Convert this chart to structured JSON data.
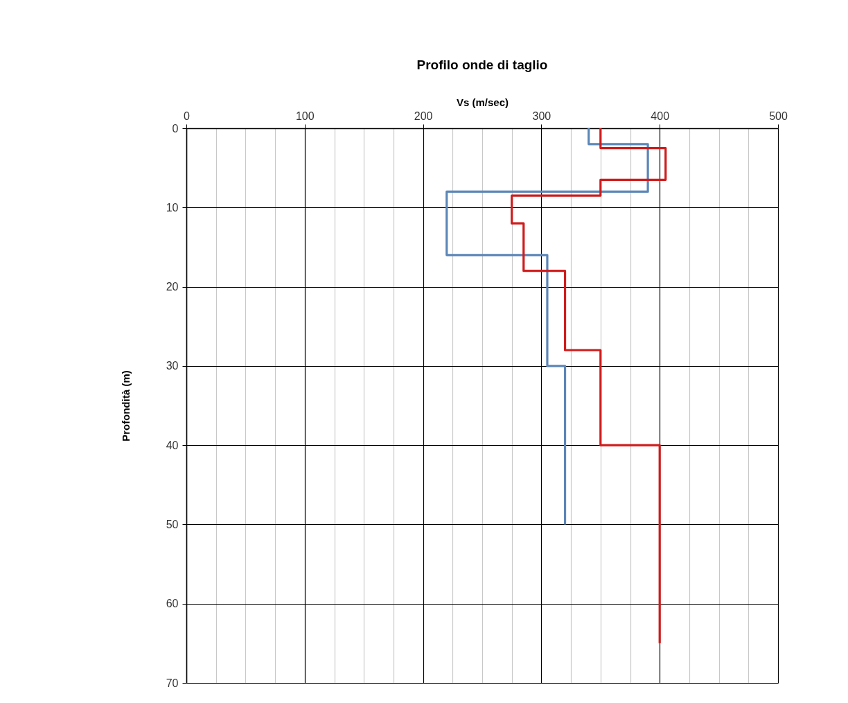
{
  "chart_data": {
    "type": "line",
    "title": "Profilo onde di taglio",
    "xlabel": "Vs (m/sec)",
    "ylabel": "Profondità (m)",
    "xlim": [
      0,
      500
    ],
    "xticks": [
      0,
      {
        "value": 25,
        "label": null
      },
      {
        "value": 50,
        "label": null
      },
      {
        "value": 75,
        "label": null
      },
      100,
      {
        "value": 125,
        "label": null
      },
      {
        "value": 150,
        "label": null
      },
      {
        "value": 175,
        "label": null
      },
      200,
      {
        "value": 225,
        "label": null
      },
      {
        "value": 250,
        "label": null
      },
      {
        "value": 275,
        "label": null
      },
      300,
      {
        "value": 325,
        "label": null
      },
      {
        "value": 350,
        "label": null
      },
      {
        "value": 375,
        "label": null
      },
      400,
      {
        "value": 425,
        "label": null
      },
      {
        "value": 450,
        "label": null
      },
      {
        "value": 475,
        "label": null
      },
      500
    ],
    "ylim": [
      70,
      0
    ],
    "yticks": [
      0,
      10,
      20,
      30,
      40,
      50,
      60,
      70
    ],
    "grid": true,
    "line_style": "solid",
    "series": [
      {
        "color": "#5b86b8",
        "x": [
          340,
          340,
          390,
          390,
          220,
          220,
          305,
          305,
          320,
          320
        ],
        "values": [
          0,
          2,
          2,
          8,
          8,
          16,
          16,
          30,
          30,
          50
        ]
      },
      {
        "color": "#d01c1c",
        "x": [
          350,
          350,
          405,
          405,
          350,
          350,
          275,
          275,
          285,
          285,
          320,
          320,
          350,
          350,
          400,
          400
        ],
        "values": [
          0,
          2.5,
          2.5,
          6.5,
          6.5,
          8.5,
          8.5,
          12,
          12,
          18,
          18,
          28,
          28,
          40,
          40,
          65
        ]
      }
    ]
  }
}
